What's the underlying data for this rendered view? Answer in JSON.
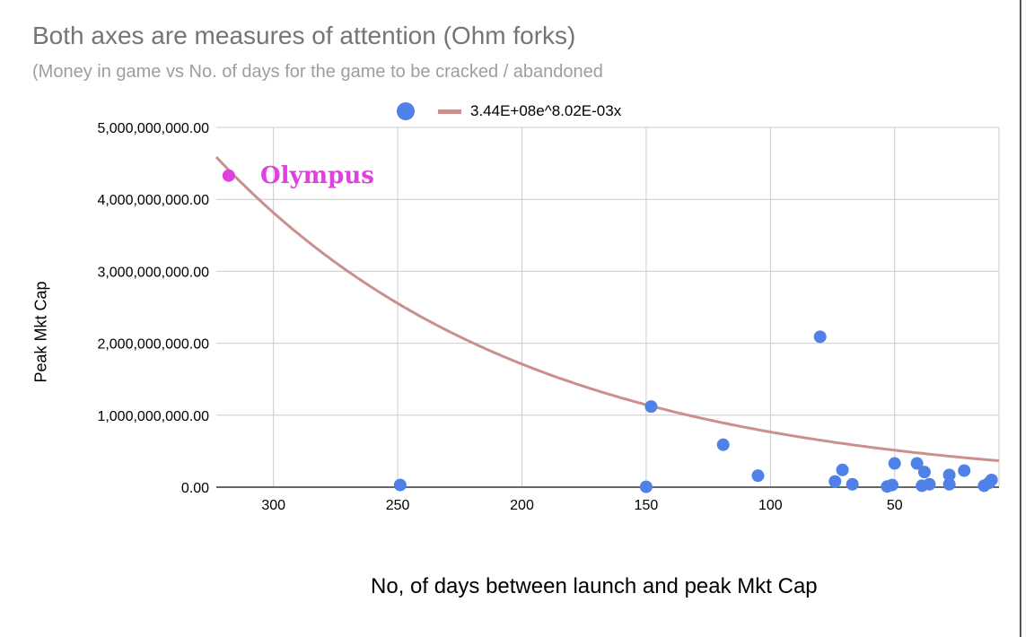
{
  "chart_data": {
    "type": "scatter",
    "title": "Both axes are measures of attention (Ohm forks)",
    "subtitle": "(Money in game vs No. of days for the game to be cracked / abandoned",
    "xlabel": "No, of days between launch and peak Mkt Cap",
    "ylabel": "Peak Mkt Cap",
    "x_reversed": true,
    "xlim": [
      8,
      323
    ],
    "ylim": [
      0,
      5000000000
    ],
    "x_ticks": [
      {
        "value": 300,
        "label": "300"
      },
      {
        "value": 250,
        "label": "250"
      },
      {
        "value": 200,
        "label": "200"
      },
      {
        "value": 150,
        "label": "150"
      },
      {
        "value": 100,
        "label": "100"
      },
      {
        "value": 50,
        "label": "50"
      }
    ],
    "y_ticks": [
      {
        "value": 0,
        "label": "0.00"
      },
      {
        "value": 1000000000,
        "label": "1,000,000,000.00"
      },
      {
        "value": 2000000000,
        "label": "2,000,000,000.00"
      },
      {
        "value": 3000000000,
        "label": "3,000,000,000.00"
      },
      {
        "value": 4000000000,
        "label": "4,000,000,000.00"
      },
      {
        "value": 5000000000,
        "label": "5,000,000,000.00"
      }
    ],
    "grid": true,
    "legend_position": "top",
    "series": [
      {
        "color": "#4f81e8",
        "points": [
          {
            "x": 249,
            "y": 30000000
          },
          {
            "x": 148,
            "y": 1120000000
          },
          {
            "x": 150,
            "y": 5000000
          },
          {
            "x": 119,
            "y": 590000000
          },
          {
            "x": 105,
            "y": 160000000
          },
          {
            "x": 80,
            "y": 2090000000
          },
          {
            "x": 74,
            "y": 80000000
          },
          {
            "x": 71,
            "y": 240000000
          },
          {
            "x": 67,
            "y": 40000000
          },
          {
            "x": 53,
            "y": 10000000
          },
          {
            "x": 51,
            "y": 30000000
          },
          {
            "x": 50,
            "y": 330000000
          },
          {
            "x": 41,
            "y": 330000000
          },
          {
            "x": 39,
            "y": 20000000
          },
          {
            "x": 38,
            "y": 210000000
          },
          {
            "x": 36,
            "y": 40000000
          },
          {
            "x": 28,
            "y": 170000000
          },
          {
            "x": 28,
            "y": 40000000
          },
          {
            "x": 22,
            "y": 230000000
          },
          {
            "x": 14,
            "y": 20000000
          },
          {
            "x": 12,
            "y": 60000000
          },
          {
            "x": 11,
            "y": 100000000
          }
        ]
      },
      {
        "color": "#e040e0",
        "points": [
          {
            "x": 318,
            "y": 4330000000
          }
        ]
      }
    ],
    "trendline": {
      "label": "3.44E+08e^8.02E-03x",
      "color": "#c9908f",
      "a": 344000000,
      "b": 0.00802
    },
    "annotations": [
      {
        "text": "Olympus",
        "color": "#e040e0"
      }
    ]
  }
}
